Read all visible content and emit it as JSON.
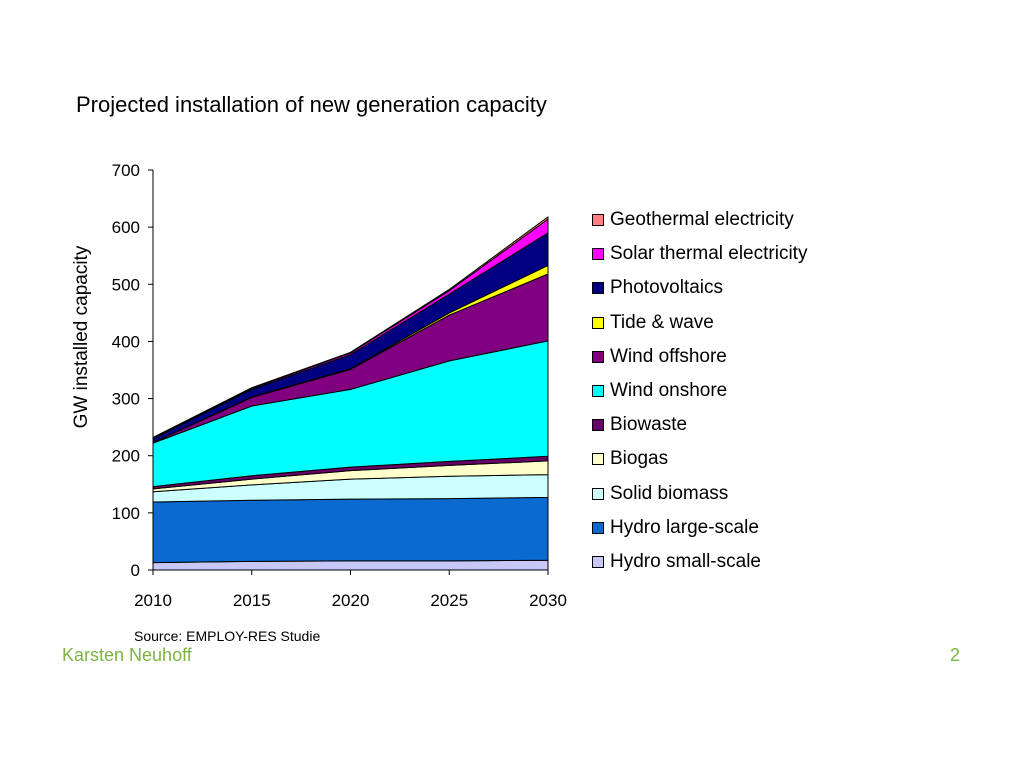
{
  "slide": {
    "source": "Source: EMPLOY-RES Studie",
    "author": "Karsten Neuhoff",
    "page_number": "2"
  },
  "chart_data": {
    "type": "area",
    "stacked": true,
    "title": "Projected installation of new generation capacity",
    "xlabel": "",
    "ylabel": "GW installed capacity",
    "x": [
      2010,
      2015,
      2020,
      2025,
      2030
    ],
    "x_ticks": [
      "2010",
      "2015",
      "2020",
      "2025",
      "2030"
    ],
    "ylim": [
      0,
      700
    ],
    "y_ticks": [
      "0",
      "100",
      "200",
      "300",
      "400",
      "500",
      "600",
      "700"
    ],
    "grid": false,
    "legend_position": "right",
    "series": [
      {
        "name": "Hydro small-scale",
        "color": "#c8c8f8",
        "values": [
          13,
          15,
          16,
          16,
          17
        ]
      },
      {
        "name": "Hydro large-scale",
        "color": "#0a6ad0",
        "values": [
          106,
          107,
          108,
          109,
          110
        ]
      },
      {
        "name": "Solid biomass",
        "color": "#ccffff",
        "values": [
          18,
          27,
          35,
          39,
          40
        ]
      },
      {
        "name": "Biogas",
        "color": "#ffffcc",
        "values": [
          5,
          10,
          15,
          19,
          24
        ]
      },
      {
        "name": "Biowaste",
        "color": "#660066",
        "values": [
          4,
          6,
          6,
          7,
          8
        ]
      },
      {
        "name": "Wind onshore",
        "color": "#00ffff",
        "values": [
          76,
          122,
          136,
          176,
          202
        ]
      },
      {
        "name": "Wind offshore",
        "color": "#800080",
        "values": [
          1,
          15,
          35,
          80,
          117
        ]
      },
      {
        "name": "Tide & wave",
        "color": "#ffff00",
        "values": [
          0,
          1,
          1,
          4,
          15
        ]
      },
      {
        "name": "Photovoltaics",
        "color": "#000080",
        "values": [
          7,
          13,
          25,
          33,
          57
        ]
      },
      {
        "name": "Solar thermal electricity",
        "color": "#ff00ff",
        "values": [
          1,
          2,
          3,
          6,
          24
        ]
      },
      {
        "name": "Geothermal electricity",
        "color": "#ff8080",
        "values": [
          1,
          1,
          1,
          2,
          4
        ]
      }
    ]
  }
}
